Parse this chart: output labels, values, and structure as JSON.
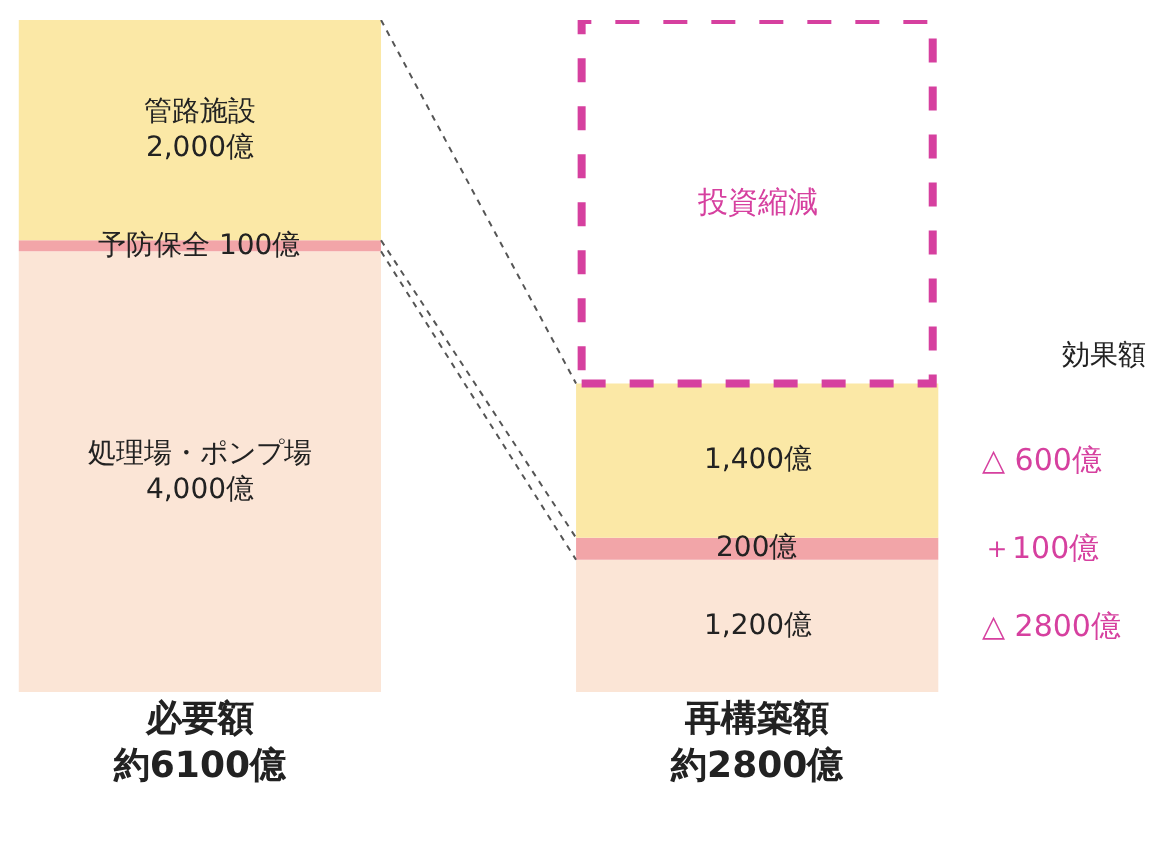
{
  "chart_data": {
    "type": "bar",
    "stacked": true,
    "categories": [
      "必要額約6100億",
      "再構築額約2800億"
    ],
    "series": [
      {
        "color": "#fbe5d6",
        "values": [
          4000,
          1200
        ],
        "value_labels": [
          "処理場・ポンプ場\n4,000億",
          "1,200億"
        ]
      },
      {
        "color": "#f2a5a8",
        "values": [
          100,
          200
        ],
        "value_labels": [
          "予防保全 100億",
          "200億"
        ]
      },
      {
        "color": "#fbe8a6",
        "values": [
          2000,
          1400
        ],
        "value_labels": [
          "管路施設\n2,000億",
          "1,400億"
        ]
      },
      {
        "color": "#d6409f",
        "line_style": "dashed",
        "values": [
          null,
          3300
        ],
        "value_labels": [
          null,
          "投資縮減"
        ]
      }
    ],
    "annotations": [
      "効果額",
      "△ 600億",
      "＋100億",
      "△ 2800億"
    ]
  }
}
